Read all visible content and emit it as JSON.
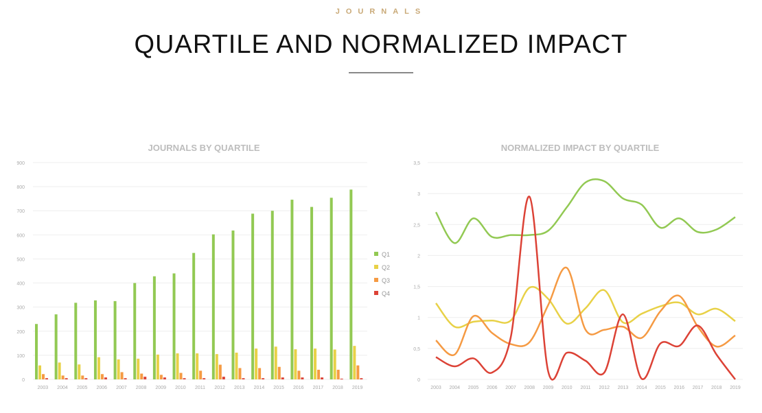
{
  "header": {
    "kicker": "JOURNALS",
    "title": "QUARTILE AND NORMALIZED IMPACT"
  },
  "colors": {
    "Q1": "#92c953",
    "Q2": "#e8d147",
    "Q3": "#f59a43",
    "Q4": "#dc4236",
    "kicker": "#c9a977"
  },
  "chart_data": [
    {
      "type": "bar",
      "title": "JOURNALS BY QUARTILE",
      "ylim": [
        0,
        900
      ],
      "yticks": [
        "0",
        "100",
        "200",
        "300",
        "400",
        "500",
        "600",
        "700",
        "800",
        "900"
      ],
      "grid": true,
      "legend": "right",
      "categories": [
        "2003",
        "2004",
        "2005",
        "2006",
        "2007",
        "2008",
        "2009",
        "2010",
        "2011",
        "2012",
        "2013",
        "2014",
        "2015",
        "2016",
        "2017",
        "2018",
        "2019"
      ],
      "series": [
        {
          "name": "Q1",
          "values": [
            230,
            270,
            318,
            328,
            325,
            400,
            428,
            440,
            525,
            602,
            618,
            688,
            700,
            746,
            716,
            754,
            788
          ]
        },
        {
          "name": "Q2",
          "values": [
            58,
            70,
            62,
            92,
            83,
            86,
            103,
            108,
            108,
            105,
            111,
            128,
            136,
            125,
            128,
            124,
            139
          ]
        },
        {
          "name": "Q3",
          "values": [
            22,
            16,
            16,
            22,
            30,
            24,
            19,
            27,
            36,
            61,
            47,
            47,
            52,
            36,
            40,
            40,
            58
          ]
        },
        {
          "name": "Q4",
          "values": [
            5,
            5,
            5,
            8,
            5,
            11,
            8,
            5,
            5,
            11,
            5,
            5,
            8,
            8,
            8,
            3,
            5
          ]
        }
      ]
    },
    {
      "type": "line",
      "title": "NORMALIZED IMPACT  BY QUARTILE",
      "ylim": [
        0,
        3.5
      ],
      "yticks": [
        "0",
        "0,5",
        "1",
        "1,5",
        "2",
        "2,5",
        "3",
        "3,5"
      ],
      "grid": true,
      "smooth": true,
      "categories": [
        "2003",
        "2004",
        "2005",
        "2006",
        "2007",
        "2008",
        "2009",
        "2010",
        "2011",
        "2012",
        "2013",
        "2014",
        "2015",
        "2016",
        "2017",
        "2018",
        "2019"
      ],
      "series": [
        {
          "name": "Q1",
          "values": [
            2.7,
            2.2,
            2.6,
            2.3,
            2.33,
            2.33,
            2.4,
            2.78,
            3.18,
            3.2,
            2.92,
            2.82,
            2.45,
            2.6,
            2.38,
            2.42,
            2.62
          ]
        },
        {
          "name": "Q2",
          "values": [
            1.23,
            0.85,
            0.93,
            0.95,
            0.95,
            1.48,
            1.3,
            0.9,
            1.15,
            1.44,
            0.92,
            1.06,
            1.18,
            1.24,
            1.05,
            1.14,
            0.94
          ]
        },
        {
          "name": "Q3",
          "values": [
            0.63,
            0.4,
            1.02,
            0.75,
            0.57,
            0.6,
            1.2,
            1.8,
            0.8,
            0.8,
            0.85,
            0.67,
            1.1,
            1.35,
            0.85,
            0.53,
            0.71
          ]
        },
        {
          "name": "Q4",
          "values": [
            0.36,
            0.21,
            0.34,
            0.11,
            0.68,
            2.95,
            0.13,
            0.43,
            0.3,
            0.11,
            1.05,
            0.01,
            0.58,
            0.54,
            0.87,
            0.4,
            0.0
          ]
        }
      ]
    }
  ]
}
